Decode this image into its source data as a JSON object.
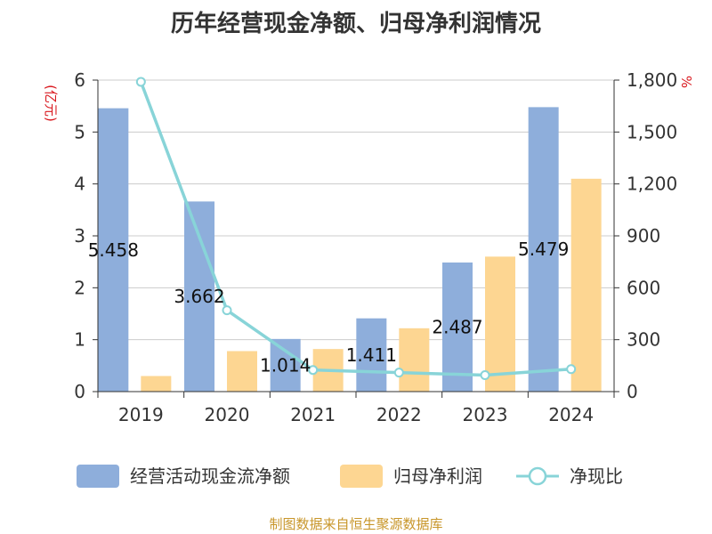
{
  "chart_data": {
    "type": "bar",
    "title": "历年经营现金净额、归母净利润情况",
    "categories": [
      "2019",
      "2020",
      "2021",
      "2022",
      "2023",
      "2024"
    ],
    "series": [
      {
        "name": "经营活动现金流净额",
        "axis": "left",
        "color": "#8eaedb",
        "values": [
          5.458,
          3.662,
          1.014,
          1.411,
          2.487,
          5.479
        ],
        "labels": [
          "5.458",
          "3.662",
          "1.014",
          "1.411",
          "2.487",
          "5.479"
        ]
      },
      {
        "name": "归母净利润",
        "axis": "left",
        "color": "#fdd692",
        "values": [
          0.3,
          0.78,
          0.82,
          1.22,
          2.6,
          4.1
        ]
      },
      {
        "name": "净现比",
        "axis": "right",
        "type": "line",
        "color": "#88d4d8",
        "values": [
          1790,
          470,
          125,
          110,
          95,
          130
        ]
      }
    ],
    "left_axis": {
      "unit": "(亿元)",
      "ylim": [
        0,
        6
      ],
      "ticks": [
        "0",
        "1",
        "2",
        "3",
        "4",
        "5",
        "6"
      ]
    },
    "right_axis": {
      "unit": "%",
      "ylim": [
        0,
        1800
      ],
      "ticks": [
        "0",
        "300",
        "600",
        "900",
        "1,200",
        "1,500",
        "1,800"
      ]
    },
    "legend": {
      "position": "bottom"
    },
    "grid": true
  },
  "source": "制图数据来自恒生聚源数据库"
}
